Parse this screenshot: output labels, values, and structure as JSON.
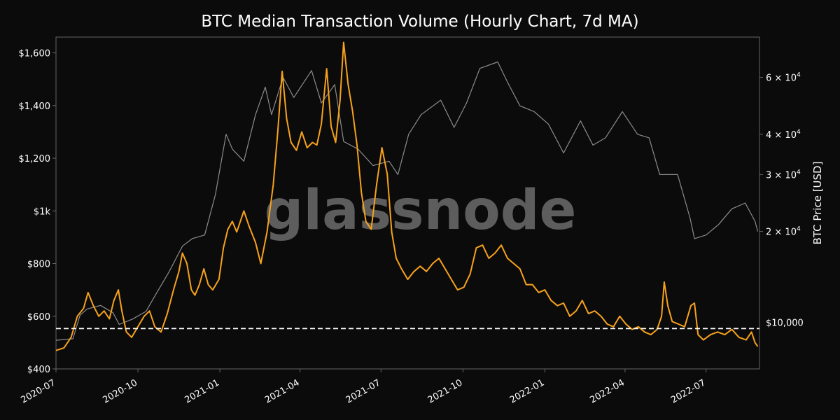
{
  "chart_data": {
    "type": "line",
    "title": "BTC Median Transaction Volume (Hourly Chart, 7d MA)",
    "watermark": "glassnode",
    "xlabel": "",
    "ylabel": "",
    "y2label": "BTC Price [USD]",
    "x_ticks": [
      "2020-07",
      "2020-10",
      "2021-01",
      "2021-04",
      "2021-07",
      "2021-10",
      "2022-01",
      "2022-04",
      "2022-07"
    ],
    "y_ticks": [
      "$400",
      "$600",
      "$800",
      "$1k",
      "$1,200",
      "$1,400",
      "$1,600"
    ],
    "y_tick_values": [
      400,
      600,
      800,
      1000,
      1200,
      1400,
      1600
    ],
    "y2_ticks": [
      {
        "value": 20000,
        "base": "2 × 10",
        "exp": "4"
      },
      {
        "value": 30000,
        "base": "3 × 10",
        "exp": "4"
      },
      {
        "value": 40000,
        "base": "4 × 10",
        "exp": "4"
      },
      {
        "value": 60000,
        "base": "6 × 10",
        "exp": "4"
      }
    ],
    "reference_line": {
      "value": 10000,
      "label": "$10,000",
      "axis": "right",
      "style": "dashed"
    },
    "xlim": [
      "2020-07-01",
      "2022-08-30"
    ],
    "ylim": [
      400,
      1660
    ],
    "y2lim": [
      7500,
      80000
    ],
    "y2scale": "log",
    "grid": false,
    "colors": {
      "background": "#0b0b0b",
      "volume": "#f7a21b",
      "price": "#8c8c8c",
      "text": "#ffffff",
      "axis": "#666666"
    },
    "series": [
      {
        "axis": "left",
        "color": "#f7a21b",
        "points": [
          [
            "2020-07-01",
            470
          ],
          [
            "2020-07-10",
            480
          ],
          [
            "2020-07-18",
            520
          ],
          [
            "2020-07-25",
            600
          ],
          [
            "2020-08-01",
            630
          ],
          [
            "2020-08-06",
            690
          ],
          [
            "2020-08-12",
            640
          ],
          [
            "2020-08-18",
            600
          ],
          [
            "2020-08-24",
            620
          ],
          [
            "2020-08-30",
            590
          ],
          [
            "2020-09-04",
            660
          ],
          [
            "2020-09-09",
            700
          ],
          [
            "2020-09-13",
            620
          ],
          [
            "2020-09-18",
            540
          ],
          [
            "2020-09-24",
            520
          ],
          [
            "2020-10-01",
            560
          ],
          [
            "2020-10-08",
            600
          ],
          [
            "2020-10-14",
            620
          ],
          [
            "2020-10-20",
            560
          ],
          [
            "2020-10-27",
            540
          ],
          [
            "2020-11-03",
            610
          ],
          [
            "2020-11-10",
            700
          ],
          [
            "2020-11-16",
            770
          ],
          [
            "2020-11-20",
            840
          ],
          [
            "2020-11-25",
            800
          ],
          [
            "2020-11-30",
            700
          ],
          [
            "2020-12-04",
            680
          ],
          [
            "2020-12-09",
            720
          ],
          [
            "2020-12-14",
            780
          ],
          [
            "2020-12-19",
            720
          ],
          [
            "2020-12-24",
            700
          ],
          [
            "2020-12-31",
            740
          ],
          [
            "2021-01-05",
            860
          ],
          [
            "2021-01-10",
            930
          ],
          [
            "2021-01-15",
            960
          ],
          [
            "2021-01-20",
            920
          ],
          [
            "2021-01-28",
            1000
          ],
          [
            "2021-02-03",
            940
          ],
          [
            "2021-02-10",
            880
          ],
          [
            "2021-02-16",
            800
          ],
          [
            "2021-02-23",
            920
          ],
          [
            "2021-03-02",
            1100
          ],
          [
            "2021-03-07",
            1300
          ],
          [
            "2021-03-12",
            1530
          ],
          [
            "2021-03-17",
            1350
          ],
          [
            "2021-03-22",
            1260
          ],
          [
            "2021-03-28",
            1230
          ],
          [
            "2021-04-03",
            1300
          ],
          [
            "2021-04-09",
            1240
          ],
          [
            "2021-04-15",
            1260
          ],
          [
            "2021-04-20",
            1250
          ],
          [
            "2021-04-25",
            1330
          ],
          [
            "2021-05-01",
            1540
          ],
          [
            "2021-05-06",
            1320
          ],
          [
            "2021-05-11",
            1260
          ],
          [
            "2021-05-16",
            1420
          ],
          [
            "2021-05-20",
            1640
          ],
          [
            "2021-05-25",
            1480
          ],
          [
            "2021-05-30",
            1380
          ],
          [
            "2021-06-04",
            1250
          ],
          [
            "2021-06-09",
            1070
          ],
          [
            "2021-06-14",
            960
          ],
          [
            "2021-06-20",
            930
          ],
          [
            "2021-06-26",
            1100
          ],
          [
            "2021-07-02",
            1240
          ],
          [
            "2021-07-08",
            1140
          ],
          [
            "2021-07-13",
            920
          ],
          [
            "2021-07-18",
            820
          ],
          [
            "2021-07-24",
            780
          ],
          [
            "2021-07-31",
            740
          ],
          [
            "2021-08-07",
            770
          ],
          [
            "2021-08-14",
            790
          ],
          [
            "2021-08-21",
            770
          ],
          [
            "2021-08-28",
            800
          ],
          [
            "2021-09-04",
            820
          ],
          [
            "2021-09-11",
            780
          ],
          [
            "2021-09-18",
            740
          ],
          [
            "2021-09-25",
            700
          ],
          [
            "2021-10-02",
            710
          ],
          [
            "2021-10-09",
            760
          ],
          [
            "2021-10-16",
            860
          ],
          [
            "2021-10-23",
            870
          ],
          [
            "2021-10-30",
            820
          ],
          [
            "2021-11-06",
            840
          ],
          [
            "2021-11-13",
            870
          ],
          [
            "2021-11-20",
            820
          ],
          [
            "2021-11-27",
            800
          ],
          [
            "2021-12-04",
            780
          ],
          [
            "2021-12-11",
            720
          ],
          [
            "2021-12-18",
            720
          ],
          [
            "2021-12-25",
            690
          ],
          [
            "2022-01-01",
            700
          ],
          [
            "2022-01-08",
            660
          ],
          [
            "2022-01-15",
            640
          ],
          [
            "2022-01-22",
            650
          ],
          [
            "2022-01-29",
            600
          ],
          [
            "2022-02-05",
            620
          ],
          [
            "2022-02-12",
            660
          ],
          [
            "2022-02-19",
            610
          ],
          [
            "2022-02-26",
            620
          ],
          [
            "2022-03-05",
            600
          ],
          [
            "2022-03-12",
            570
          ],
          [
            "2022-03-19",
            560
          ],
          [
            "2022-03-26",
            600
          ],
          [
            "2022-04-02",
            570
          ],
          [
            "2022-04-09",
            550
          ],
          [
            "2022-04-16",
            560
          ],
          [
            "2022-04-23",
            540
          ],
          [
            "2022-04-30",
            530
          ],
          [
            "2022-05-07",
            550
          ],
          [
            "2022-05-12",
            600
          ],
          [
            "2022-05-15",
            730
          ],
          [
            "2022-05-19",
            640
          ],
          [
            "2022-05-24",
            580
          ],
          [
            "2022-05-31",
            570
          ],
          [
            "2022-06-07",
            560
          ],
          [
            "2022-06-14",
            640
          ],
          [
            "2022-06-18",
            650
          ],
          [
            "2022-06-22",
            530
          ],
          [
            "2022-06-28",
            510
          ],
          [
            "2022-07-06",
            530
          ],
          [
            "2022-07-14",
            540
          ],
          [
            "2022-07-22",
            530
          ],
          [
            "2022-07-30",
            550
          ],
          [
            "2022-08-07",
            520
          ],
          [
            "2022-08-15",
            510
          ],
          [
            "2022-08-21",
            540
          ],
          [
            "2022-08-25",
            500
          ],
          [
            "2022-08-28",
            485
          ]
        ]
      },
      {
        "axis": "right",
        "color": "#8c8c8c",
        "points": [
          [
            "2020-07-01",
            9200
          ],
          [
            "2020-07-20",
            9300
          ],
          [
            "2020-07-28",
            11000
          ],
          [
            "2020-08-05",
            11500
          ],
          [
            "2020-08-20",
            11800
          ],
          [
            "2020-09-03",
            11200
          ],
          [
            "2020-09-10",
            10300
          ],
          [
            "2020-09-25",
            10700
          ],
          [
            "2020-10-10",
            11300
          ],
          [
            "2020-10-22",
            12900
          ],
          [
            "2020-11-05",
            15000
          ],
          [
            "2020-11-20",
            18000
          ],
          [
            "2020-12-01",
            19000
          ],
          [
            "2020-12-15",
            19500
          ],
          [
            "2020-12-27",
            26000
          ],
          [
            "2021-01-08",
            40000
          ],
          [
            "2021-01-15",
            36000
          ],
          [
            "2021-01-28",
            33000
          ],
          [
            "2021-02-10",
            46000
          ],
          [
            "2021-02-21",
            56000
          ],
          [
            "2021-02-28",
            46000
          ],
          [
            "2021-03-13",
            60000
          ],
          [
            "2021-03-25",
            52000
          ],
          [
            "2021-04-14",
            63000
          ],
          [
            "2021-04-25",
            50000
          ],
          [
            "2021-05-10",
            57000
          ],
          [
            "2021-05-20",
            38000
          ],
          [
            "2021-06-05",
            36000
          ],
          [
            "2021-06-22",
            32000
          ],
          [
            "2021-07-10",
            33000
          ],
          [
            "2021-07-20",
            30000
          ],
          [
            "2021-08-01",
            40000
          ],
          [
            "2021-08-15",
            46000
          ],
          [
            "2021-09-06",
            51000
          ],
          [
            "2021-09-21",
            42000
          ],
          [
            "2021-10-05",
            50000
          ],
          [
            "2021-10-20",
            64000
          ],
          [
            "2021-11-09",
            67000
          ],
          [
            "2021-11-20",
            58000
          ],
          [
            "2021-12-04",
            49000
          ],
          [
            "2021-12-20",
            47000
          ],
          [
            "2022-01-05",
            43000
          ],
          [
            "2022-01-22",
            35000
          ],
          [
            "2022-02-10",
            44000
          ],
          [
            "2022-02-24",
            37000
          ],
          [
            "2022-03-10",
            39000
          ],
          [
            "2022-03-29",
            47000
          ],
          [
            "2022-04-15",
            40000
          ],
          [
            "2022-04-28",
            39000
          ],
          [
            "2022-05-10",
            30000
          ],
          [
            "2022-05-30",
            30000
          ],
          [
            "2022-06-13",
            22000
          ],
          [
            "2022-06-18",
            19000
          ],
          [
            "2022-07-01",
            19500
          ],
          [
            "2022-07-15",
            21000
          ],
          [
            "2022-07-30",
            23500
          ],
          [
            "2022-08-14",
            24500
          ],
          [
            "2022-08-25",
            21500
          ],
          [
            "2022-08-28",
            20000
          ]
        ]
      }
    ]
  }
}
